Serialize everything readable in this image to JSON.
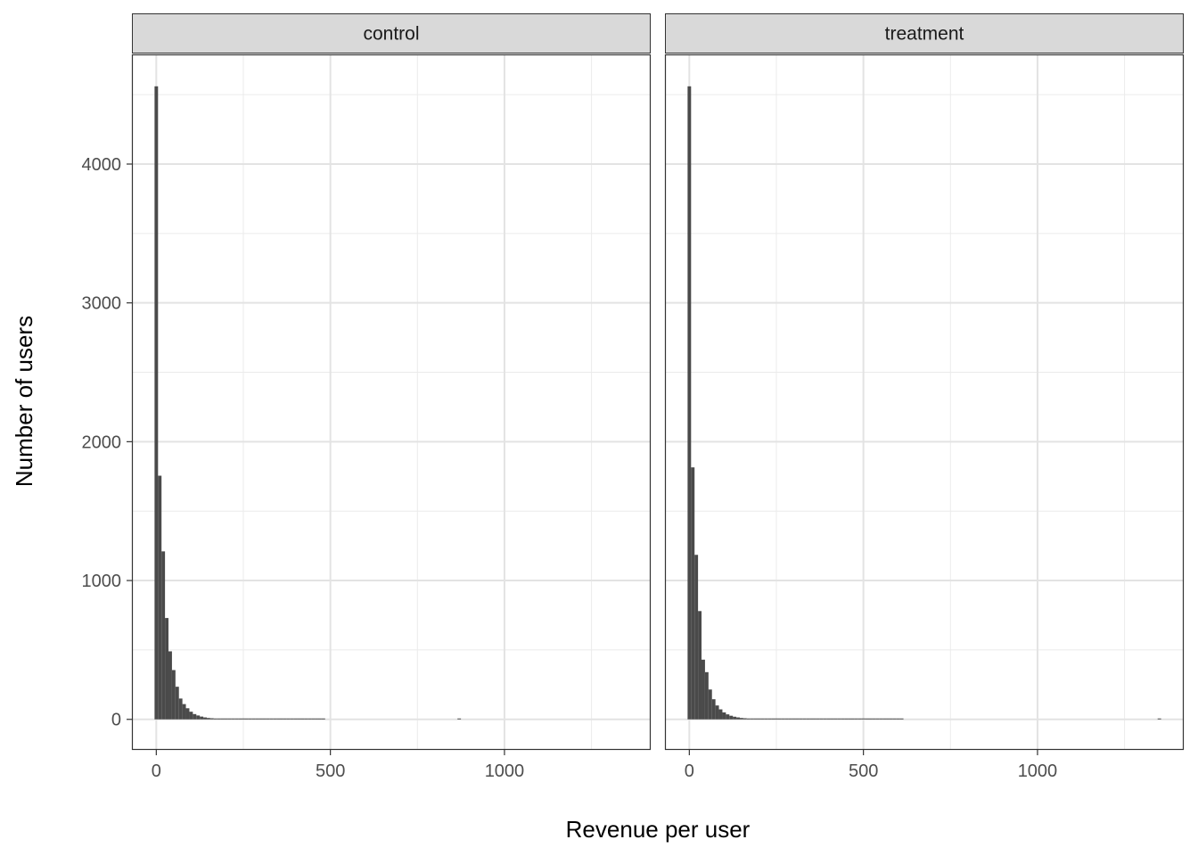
{
  "chart_data": {
    "type": "bar",
    "subtype": "faceted-histogram",
    "xlabel": "Revenue per user",
    "ylabel": "Number of users",
    "xlim": [
      -70,
      1420
    ],
    "ylim": [
      -220,
      4790
    ],
    "x_major_ticks": [
      0,
      500,
      1000
    ],
    "x_tick_labels": [
      "0",
      "500",
      "1000"
    ],
    "x_minor_ticks": [
      250,
      750,
      1250
    ],
    "y_major_ticks": [
      0,
      1000,
      2000,
      3000,
      4000
    ],
    "y_tick_labels": [
      "0",
      "1000",
      "2000",
      "3000",
      "4000"
    ],
    "y_minor_ticks": [
      500,
      1500,
      2500,
      3500,
      4500
    ],
    "grid": true,
    "theme": "bw",
    "bar_color": "#4a4a4a",
    "bin_width": 10,
    "bin_start": -5,
    "facets": [
      {
        "name": "control",
        "counts": [
          4560,
          1755,
          1210,
          730,
          490,
          355,
          235,
          150,
          110,
          80,
          55,
          38,
          28,
          20,
          14,
          10,
          8,
          6,
          5,
          4,
          3,
          3,
          2,
          2,
          2,
          1,
          1,
          1,
          1,
          1,
          1,
          1,
          1,
          1,
          1,
          1,
          1,
          1,
          1,
          1,
          1,
          1,
          1,
          1,
          1,
          1,
          1,
          1,
          1,
          0,
          0,
          0,
          0,
          0,
          0,
          0,
          0,
          0,
          0,
          0,
          0,
          0,
          0,
          0,
          0,
          0,
          0,
          0,
          0,
          0,
          0,
          0,
          0,
          0,
          0,
          0,
          0,
          0,
          0,
          0,
          0,
          0,
          0,
          0,
          0,
          0,
          0,
          1
        ]
      },
      {
        "name": "treatment",
        "counts": [
          4560,
          1815,
          1185,
          780,
          430,
          340,
          215,
          145,
          100,
          72,
          50,
          36,
          26,
          19,
          14,
          10,
          8,
          6,
          5,
          4,
          3,
          3,
          2,
          2,
          2,
          1,
          1,
          1,
          1,
          1,
          1,
          1,
          1,
          1,
          1,
          1,
          1,
          1,
          1,
          1,
          1,
          1,
          1,
          1,
          1,
          1,
          1,
          1,
          1,
          1,
          1,
          1,
          1,
          1,
          1,
          1,
          1,
          1,
          1,
          1,
          1,
          1,
          0,
          0,
          0,
          0,
          0,
          0,
          0,
          0,
          0,
          0,
          0,
          0,
          0,
          0,
          0,
          0,
          0,
          0,
          0,
          0,
          0,
          0,
          0,
          0,
          0,
          0,
          0,
          0,
          0,
          0,
          0,
          0,
          0,
          0,
          0,
          0,
          0,
          0,
          0,
          0,
          0,
          0,
          0,
          0,
          0,
          0,
          0,
          0,
          0,
          0,
          0,
          0,
          0,
          0,
          0,
          0,
          0,
          0,
          0,
          0,
          0,
          0,
          0,
          0,
          0,
          0,
          0,
          0,
          0,
          0,
          0,
          0,
          0,
          1
        ]
      }
    ]
  }
}
